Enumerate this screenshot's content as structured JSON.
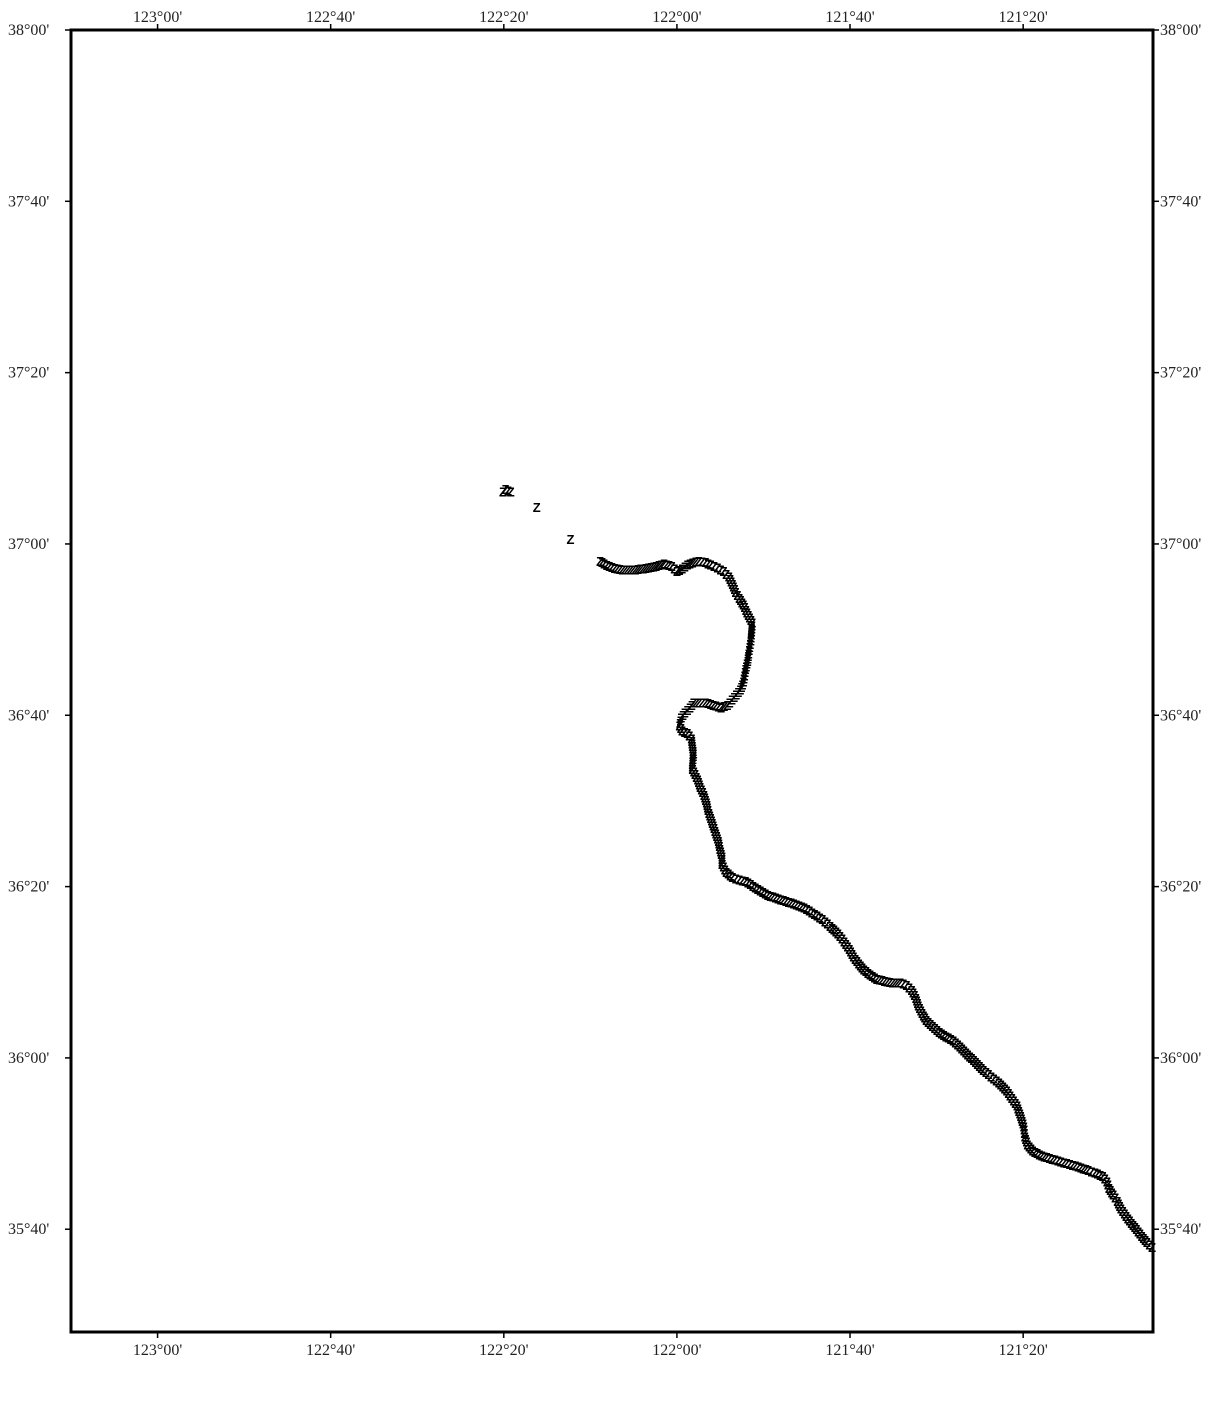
{
  "map": {
    "bounds": {
      "lon_min": -123.1667,
      "lon_max": -121.0833,
      "lat_min": 35.4667,
      "lat_max": 38.0
    },
    "frame_color": "#000000",
    "line_color": "#000000",
    "marker": "Z",
    "x_ticks": [
      {
        "lon": -123.0,
        "label": "123°00'"
      },
      {
        "lon": -122.6667,
        "label": "122°40'"
      },
      {
        "lon": -122.3333,
        "label": "122°20'"
      },
      {
        "lon": -122.0,
        "label": "122°00'"
      },
      {
        "lon": -121.6667,
        "label": "121°40'"
      },
      {
        "lon": -121.3333,
        "label": "121°20'"
      }
    ],
    "y_ticks": [
      {
        "lat": 38.0,
        "label": "38°00'"
      },
      {
        "lat": 37.6667,
        "label": "37°40'"
      },
      {
        "lat": 37.3333,
        "label": "37°20'"
      },
      {
        "lat": 37.0,
        "label": "37°00'"
      },
      {
        "lat": 36.6667,
        "label": "36°40'"
      },
      {
        "lat": 36.3333,
        "label": "36°20'"
      },
      {
        "lat": 36.0,
        "label": "36°00'"
      },
      {
        "lat": 35.6667,
        "label": "35°40'"
      }
    ],
    "track": [
      [
        -122.335,
        37.1
      ],
      [
        -122.33,
        37.105
      ],
      [
        -122.32,
        37.1
      ],
      [
        -122.27,
        37.07
      ],
      [
        -122.205,
        37.008
      ],
      [
        -122.148,
        36.965
      ],
      [
        -122.14,
        36.96
      ],
      [
        -122.13,
        36.955
      ],
      [
        -122.115,
        36.95
      ],
      [
        -122.1,
        36.948
      ],
      [
        -122.085,
        36.948
      ],
      [
        -122.07,
        36.95
      ],
      [
        -122.055,
        36.952
      ],
      [
        -122.04,
        36.955
      ],
      [
        -122.025,
        36.96
      ],
      [
        -122.01,
        36.955
      ],
      [
        -122.0,
        36.945
      ],
      [
        -121.99,
        36.95
      ],
      [
        -121.98,
        36.958
      ],
      [
        -121.97,
        36.962
      ],
      [
        -121.958,
        36.965
      ],
      [
        -121.945,
        36.963
      ],
      [
        -121.935,
        36.958
      ],
      [
        -121.922,
        36.952
      ],
      [
        -121.91,
        36.945
      ],
      [
        -121.9,
        36.935
      ],
      [
        -121.893,
        36.92
      ],
      [
        -121.887,
        36.905
      ],
      [
        -121.88,
        36.893
      ],
      [
        -121.872,
        36.88
      ],
      [
        -121.865,
        36.865
      ],
      [
        -121.86,
        36.855
      ],
      [
        -121.855,
        36.845
      ],
      [
        -121.858,
        36.81
      ],
      [
        -121.862,
        36.785
      ],
      [
        -121.864,
        36.77
      ],
      [
        -121.868,
        36.755
      ],
      [
        -121.872,
        36.73
      ],
      [
        -121.878,
        36.715
      ],
      [
        -121.89,
        36.7
      ],
      [
        -121.903,
        36.685
      ],
      [
        -121.915,
        36.68
      ],
      [
        -121.93,
        36.685
      ],
      [
        -121.945,
        36.69
      ],
      [
        -121.958,
        36.69
      ],
      [
        -121.968,
        36.69
      ],
      [
        -121.975,
        36.68
      ],
      [
        -121.985,
        36.67
      ],
      [
        -121.992,
        36.66
      ],
      [
        -121.995,
        36.645
      ],
      [
        -121.99,
        36.635
      ],
      [
        -121.98,
        36.63
      ],
      [
        -121.972,
        36.62
      ],
      [
        -121.97,
        36.605
      ],
      [
        -121.968,
        36.59
      ],
      [
        -121.97,
        36.575
      ],
      [
        -121.97,
        36.56
      ],
      [
        -121.965,
        36.55
      ],
      [
        -121.96,
        36.54
      ],
      [
        -121.955,
        36.525
      ],
      [
        -121.948,
        36.51
      ],
      [
        -121.943,
        36.495
      ],
      [
        -121.94,
        36.48
      ],
      [
        -121.935,
        36.465
      ],
      [
        -121.93,
        36.45
      ],
      [
        -121.925,
        36.435
      ],
      [
        -121.92,
        36.42
      ],
      [
        -121.917,
        36.405
      ],
      [
        -121.913,
        36.39
      ],
      [
        -121.913,
        36.375
      ],
      [
        -121.905,
        36.36
      ],
      [
        -121.893,
        36.35
      ],
      [
        -121.88,
        36.345
      ],
      [
        -121.868,
        36.342
      ],
      [
        -121.825,
        36.315
      ],
      [
        -121.81,
        36.31
      ],
      [
        -121.795,
        36.305
      ],
      [
        -121.78,
        36.3
      ],
      [
        -121.765,
        36.295
      ],
      [
        -121.75,
        36.288
      ],
      [
        -121.735,
        36.278
      ],
      [
        -121.72,
        36.268
      ],
      [
        -121.705,
        36.255
      ],
      [
        -121.69,
        36.24
      ],
      [
        -121.678,
        36.225
      ],
      [
        -121.668,
        36.21
      ],
      [
        -121.66,
        36.195
      ],
      [
        -121.65,
        36.182
      ],
      [
        -121.64,
        36.17
      ],
      [
        -121.628,
        36.16
      ],
      [
        -121.615,
        36.152
      ],
      [
        -121.6,
        36.148
      ],
      [
        -121.585,
        36.145
      ],
      [
        -121.57,
        36.145
      ],
      [
        -121.558,
        36.14
      ],
      [
        -121.548,
        36.13
      ],
      [
        -121.54,
        36.115
      ],
      [
        -121.535,
        36.1
      ],
      [
        -121.528,
        36.085
      ],
      [
        -121.52,
        36.072
      ],
      [
        -121.508,
        36.06
      ],
      [
        -121.495,
        36.048
      ],
      [
        -121.482,
        36.04
      ],
      [
        -121.468,
        36.032
      ],
      [
        -121.455,
        36.02
      ],
      [
        -121.44,
        36.005
      ],
      [
        -121.425,
        35.99
      ],
      [
        -121.41,
        35.975
      ],
      [
        -121.395,
        35.962
      ],
      [
        -121.38,
        35.95
      ],
      [
        -121.365,
        35.935
      ],
      [
        -121.355,
        35.92
      ],
      [
        -121.345,
        35.905
      ],
      [
        -121.338,
        35.885
      ],
      [
        -121.332,
        35.865
      ],
      [
        -121.33,
        35.845
      ],
      [
        -121.325,
        35.83
      ],
      [
        -121.315,
        35.818
      ],
      [
        -121.302,
        35.81
      ],
      [
        -121.288,
        35.805
      ],
      [
        -121.272,
        35.8
      ],
      [
        -121.255,
        35.795
      ],
      [
        -121.238,
        35.79
      ],
      [
        -121.222,
        35.785
      ],
      [
        -121.208,
        35.78
      ],
      [
        -121.195,
        35.775
      ],
      [
        -121.18,
        35.768
      ],
      [
        -121.172,
        35.758
      ],
      [
        -121.168,
        35.745
      ],
      [
        -121.16,
        35.732
      ],
      [
        -121.152,
        35.72
      ],
      [
        -121.145,
        35.705
      ],
      [
        -121.135,
        35.69
      ],
      [
        -121.125,
        35.677
      ],
      [
        -121.115,
        35.665
      ],
      [
        -121.105,
        35.652
      ],
      [
        -121.095,
        35.64
      ],
      [
        -121.085,
        35.63
      ]
    ]
  }
}
